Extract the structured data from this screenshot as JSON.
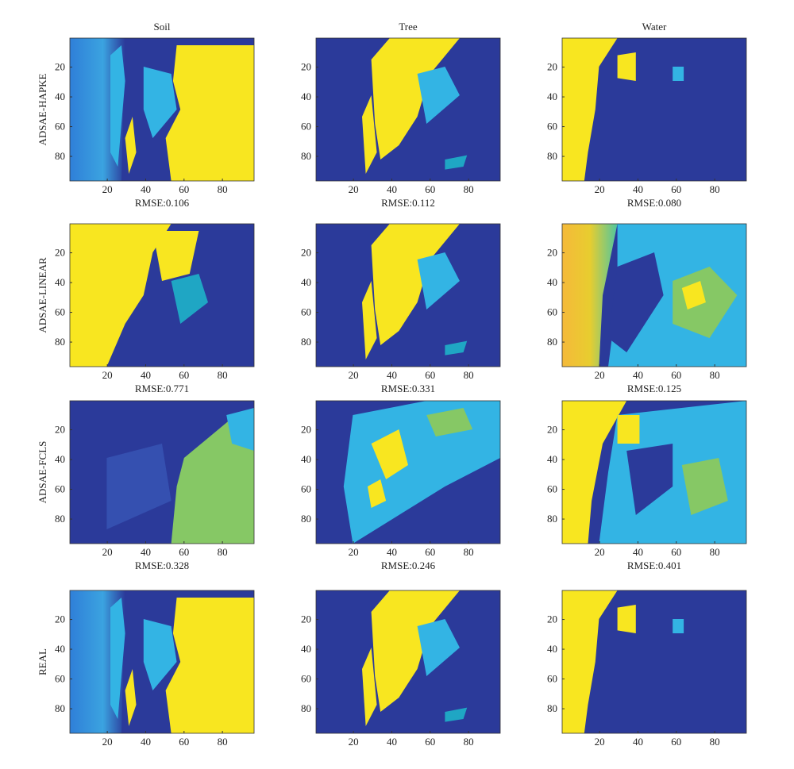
{
  "columns": [
    "Soil",
    "Tree",
    "Water"
  ],
  "rows": [
    "ADSAE-HAPKE",
    "ADSAE-LINEAR",
    "ADSAE-FCLS",
    "REAL"
  ],
  "rmse": [
    [
      "RMSE:0.106",
      "RMSE:0.112",
      "RMSE:0.080"
    ],
    [
      "RMSE:0.771",
      "RMSE:0.331",
      "RMSE:0.125"
    ],
    [
      "RMSE:0.328",
      "RMSE:0.246",
      "RMSE:0.401"
    ]
  ],
  "xlim": [
    0.5,
    96.5
  ],
  "ylim": [
    0.5,
    96.5
  ],
  "xticks": [
    20,
    40,
    60,
    80
  ],
  "yticks": [
    20,
    40,
    60,
    80
  ]
}
